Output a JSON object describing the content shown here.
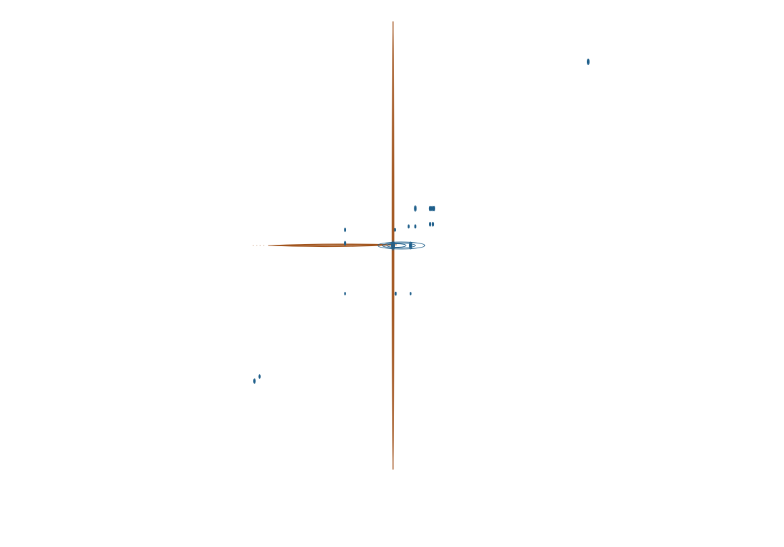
{
  "chart_data": {
    "type": "contour",
    "title": "",
    "xlabel": "",
    "ylabel": "",
    "axes_visible": false,
    "grid": false,
    "legend": "none",
    "xlim": [
      -1.0,
      1.0
    ],
    "ylim": [
      -1.0,
      1.0
    ],
    "colors": {
      "cross_peak": "#1f5f8b",
      "diagonal_ridge": "#a0521a"
    },
    "series": [
      {
        "role": "cross-peaks",
        "color": "#1f5f8b",
        "peaks": [
          {
            "x": 0.0,
            "y": 0.0,
            "size": 1.6,
            "rings": 4
          },
          {
            "x": 0.045,
            "y": 0.0,
            "size": 1.2,
            "rings": 3
          },
          {
            "x": 0.5,
            "y": 0.82,
            "size": 1.0,
            "rings": 2
          },
          {
            "x": 0.057,
            "y": 0.165,
            "size": 0.9,
            "rings": 2
          },
          {
            "x": 0.095,
            "y": 0.165,
            "size": 0.8,
            "rings": 2
          },
          {
            "x": 0.1,
            "y": 0.165,
            "size": 0.8,
            "rings": 2
          },
          {
            "x": 0.105,
            "y": 0.165,
            "size": 0.8,
            "rings": 2
          },
          {
            "x": 0.04,
            "y": 0.085,
            "size": 0.6,
            "rings": 2
          },
          {
            "x": 0.057,
            "y": 0.085,
            "size": 0.6,
            "rings": 1
          },
          {
            "x": 0.095,
            "y": 0.095,
            "size": 0.7,
            "rings": 2
          },
          {
            "x": 0.102,
            "y": 0.095,
            "size": 0.7,
            "rings": 2
          },
          {
            "x": 0.005,
            "y": 0.07,
            "size": 0.5,
            "rings": 1
          },
          {
            "x": -0.123,
            "y": 0.07,
            "size": 0.6,
            "rings": 2
          },
          {
            "x": -0.123,
            "y": 0.01,
            "size": 0.7,
            "rings": 2
          },
          {
            "x": -0.123,
            "y": -0.215,
            "size": 0.5,
            "rings": 1
          },
          {
            "x": 0.007,
            "y": -0.215,
            "size": 0.6,
            "rings": 1
          },
          {
            "x": 0.045,
            "y": -0.215,
            "size": 0.5,
            "rings": 1
          },
          {
            "x": -0.355,
            "y": -0.605,
            "size": 0.8,
            "rings": 2
          },
          {
            "x": -0.342,
            "y": -0.585,
            "size": 0.7,
            "rings": 2
          }
        ]
      },
      {
        "role": "ridges",
        "color": "#a0521a",
        "ridges": [
          {
            "orientation": "vertical",
            "x": 0.0,
            "y_from": -1.0,
            "y_to": 1.0
          },
          {
            "orientation": "horizontal",
            "y": 0.0,
            "x_from": -0.32,
            "x_to": 0.01
          }
        ]
      }
    ]
  }
}
